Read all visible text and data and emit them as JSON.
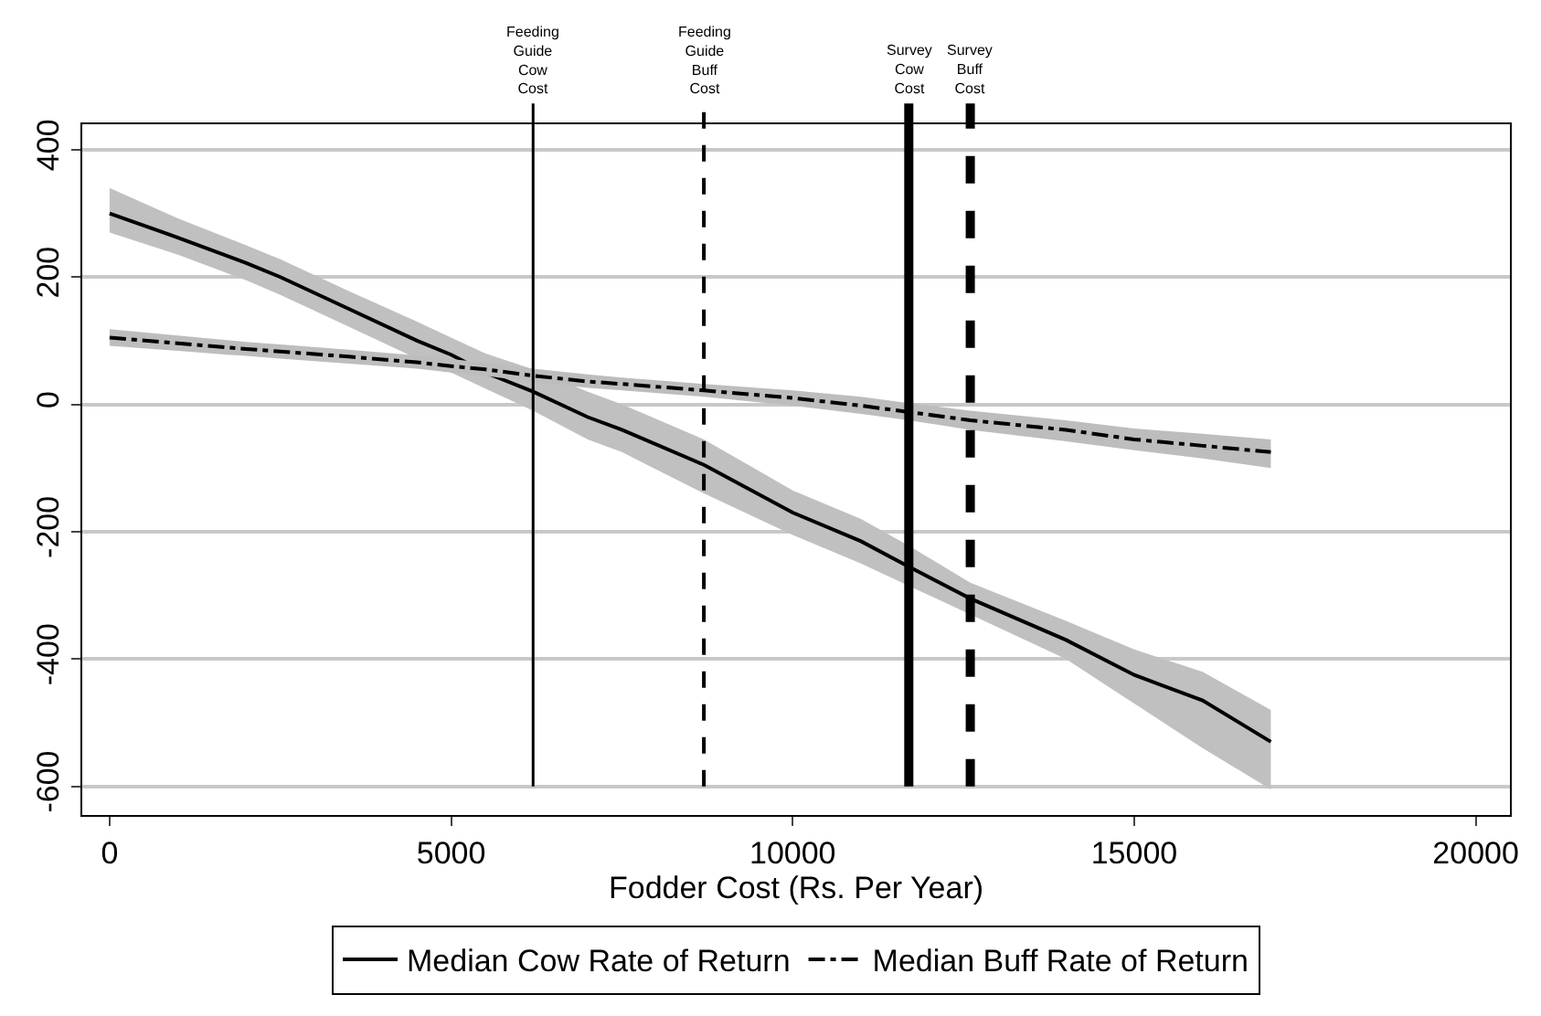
{
  "chart_data": {
    "type": "line",
    "xlabel": "Fodder Cost (Rs. Per Year)",
    "x": [
      0,
      1000,
      2000,
      2500,
      3500,
      4500,
      5000,
      5500,
      6200,
      7000,
      7500,
      8700,
      10000,
      11000,
      11700,
      12600,
      14000,
      15000,
      16000,
      17000
    ],
    "series": [
      {
        "name": "Median Cow Rate of Return",
        "color": "#000000",
        "line_style": "solid",
        "values": [
          300,
          262,
          222,
          200,
          150,
          100,
          78,
          50,
          20,
          -20,
          -40,
          -95,
          -170,
          -215,
          -255,
          -305,
          -370,
          -425,
          -465,
          -530
        ],
        "lower": [
          270,
          235,
          195,
          172,
          122,
          72,
          50,
          25,
          -10,
          -55,
          -75,
          -140,
          -205,
          -250,
          -285,
          -330,
          -400,
          -470,
          -540,
          -605
        ],
        "upper": [
          340,
          292,
          250,
          228,
          178,
          130,
          105,
          80,
          55,
          20,
          0,
          -55,
          -135,
          -180,
          -222,
          -280,
          -340,
          -385,
          -420,
          -480
        ]
      },
      {
        "name": "Median Buff Rate of Return",
        "color": "#000000",
        "line_style": "dashdot",
        "values": [
          105,
          96,
          87,
          83,
          75,
          66,
          60,
          55,
          45,
          36,
          32,
          22,
          10,
          -2,
          -12,
          -25,
          -40,
          -55,
          -65,
          -75
        ],
        "lower": [
          92,
          84,
          76,
          72,
          64,
          56,
          50,
          45,
          35,
          26,
          22,
          12,
          -2,
          -15,
          -25,
          -40,
          -58,
          -72,
          -85,
          -100
        ],
        "upper": [
          118,
          108,
          98,
          94,
          86,
          77,
          71,
          66,
          56,
          47,
          42,
          32,
          22,
          12,
          2,
          -10,
          -25,
          -38,
          -46,
          -55
        ]
      }
    ],
    "ref_lines": [
      {
        "axis": "x",
        "value": 6200,
        "label": "Feeding\nGuide\nCow\nCost",
        "color": "#000000",
        "line_style": "solid"
      },
      {
        "axis": "x",
        "value": 8700,
        "label": "Feeding\nGuide\nBuff\nCost",
        "color": "#000000",
        "line_style": "dashed"
      },
      {
        "axis": "x",
        "value": 11700,
        "label": "Survey\nCow\nCost",
        "color": "#000000",
        "line_style": "solid"
      },
      {
        "axis": "x",
        "value": 12600,
        "label": "Survey\nBuff\nCost",
        "color": "#000000",
        "line_style": "dashed"
      }
    ],
    "xlim": [
      -400,
      20500
    ],
    "xticks": [
      0,
      5000,
      10000,
      15000,
      20000
    ],
    "ylim": [
      -645,
      440
    ],
    "yticks": [
      400,
      200,
      0,
      -200,
      -400,
      -600
    ],
    "grid": "y",
    "legend": "bottom",
    "marker": "none"
  }
}
